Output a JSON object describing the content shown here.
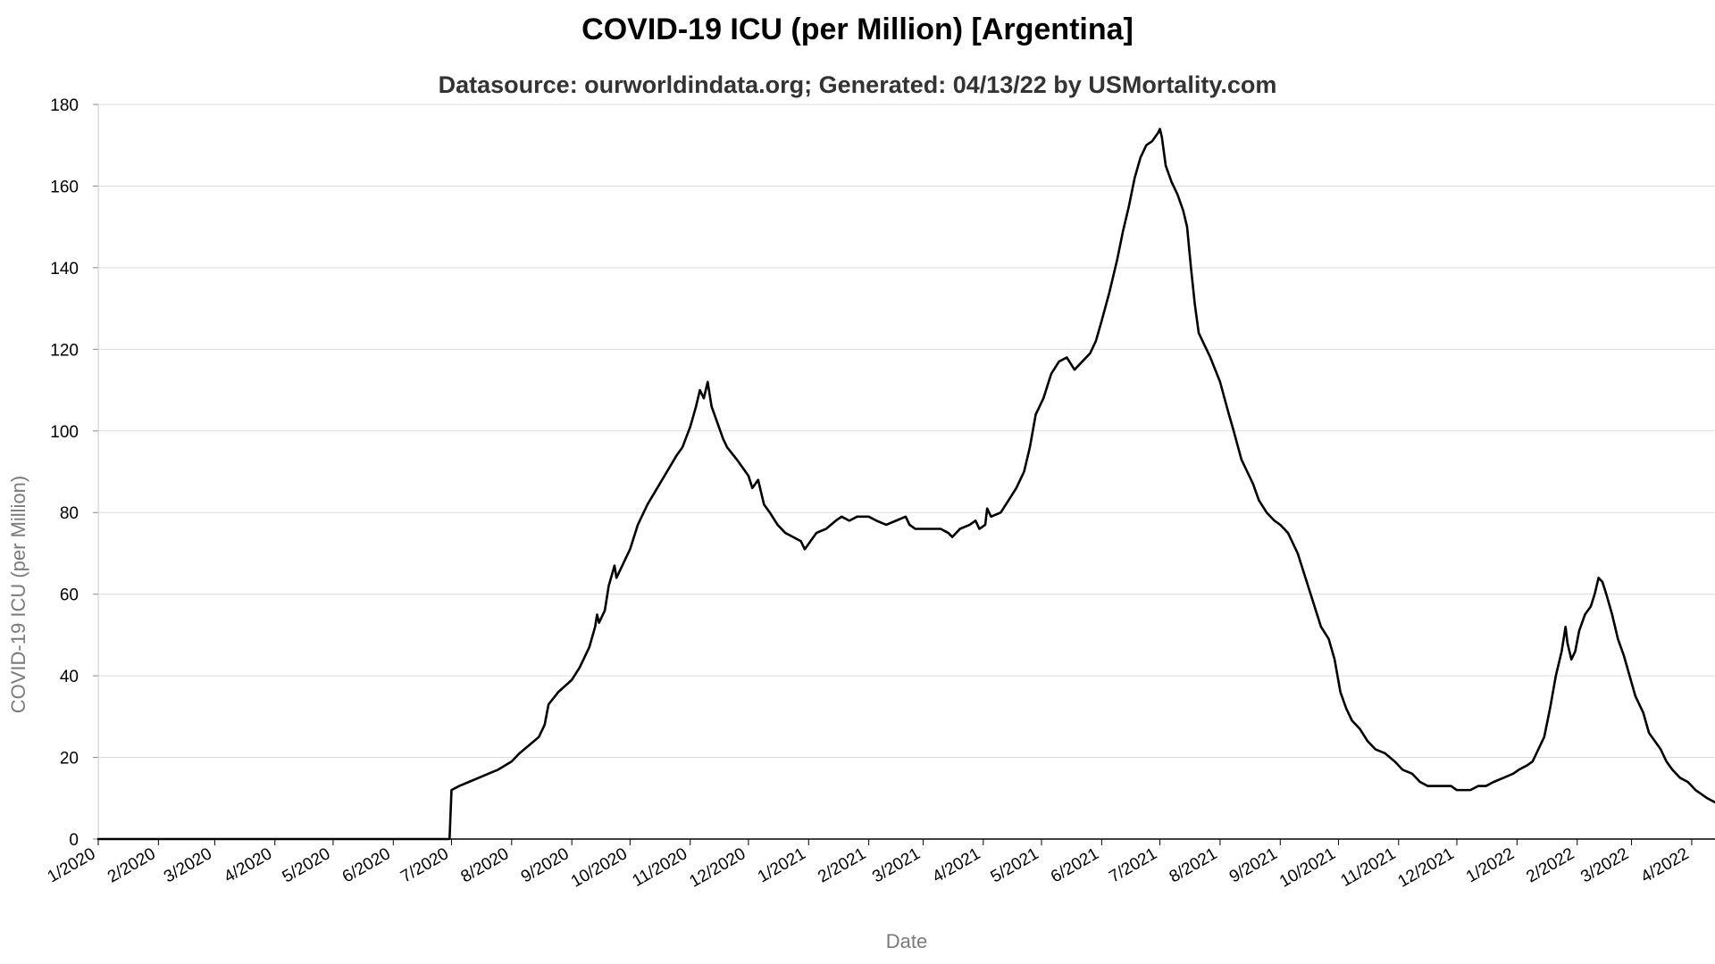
{
  "chart_data": {
    "type": "line",
    "title": "COVID-19 ICU (per Million) [Argentina]",
    "subtitle": "Datasource: ourworldindata.org; Generated: 04/13/22 by USMortality.com",
    "xlabel": "Date",
    "ylabel": "COVID-19 ICU (per Million)",
    "ylim": [
      0,
      180
    ],
    "yticks": [
      0,
      20,
      40,
      60,
      80,
      100,
      120,
      140,
      160,
      180
    ],
    "xlim": [
      "2020-01-01",
      "2022-04-13"
    ],
    "xticks": [
      {
        "date": "2020-01-01",
        "label": "1/2020"
      },
      {
        "date": "2020-02-01",
        "label": "2/2020"
      },
      {
        "date": "2020-03-01",
        "label": "3/2020"
      },
      {
        "date": "2020-04-01",
        "label": "4/2020"
      },
      {
        "date": "2020-05-01",
        "label": "5/2020"
      },
      {
        "date": "2020-06-01",
        "label": "6/2020"
      },
      {
        "date": "2020-07-01",
        "label": "7/2020"
      },
      {
        "date": "2020-08-01",
        "label": "8/2020"
      },
      {
        "date": "2020-09-01",
        "label": "9/2020"
      },
      {
        "date": "2020-10-01",
        "label": "10/2020"
      },
      {
        "date": "2020-11-01",
        "label": "11/2020"
      },
      {
        "date": "2020-12-01",
        "label": "12/2020"
      },
      {
        "date": "2021-01-01",
        "label": "1/2021"
      },
      {
        "date": "2021-02-01",
        "label": "2/2021"
      },
      {
        "date": "2021-03-01",
        "label": "3/2021"
      },
      {
        "date": "2021-04-01",
        "label": "4/2021"
      },
      {
        "date": "2021-05-01",
        "label": "5/2021"
      },
      {
        "date": "2021-06-01",
        "label": "6/2021"
      },
      {
        "date": "2021-07-01",
        "label": "7/2021"
      },
      {
        "date": "2021-08-01",
        "label": "8/2021"
      },
      {
        "date": "2021-09-01",
        "label": "9/2021"
      },
      {
        "date": "2021-10-01",
        "label": "10/2021"
      },
      {
        "date": "2021-11-01",
        "label": "11/2021"
      },
      {
        "date": "2021-12-01",
        "label": "12/2021"
      },
      {
        "date": "2022-01-01",
        "label": "1/2022"
      },
      {
        "date": "2022-02-01",
        "label": "2/2022"
      },
      {
        "date": "2022-03-01",
        "label": "3/2022"
      },
      {
        "date": "2022-04-01",
        "label": "4/2022"
      }
    ],
    "grid": true,
    "line_color": "#000000",
    "series": [
      {
        "points": [
          [
            "2020-01-01",
            0
          ],
          [
            "2020-06-30",
            0
          ],
          [
            "2020-07-01",
            12
          ],
          [
            "2020-07-05",
            13
          ],
          [
            "2020-07-10",
            14
          ],
          [
            "2020-07-15",
            15
          ],
          [
            "2020-07-20",
            16
          ],
          [
            "2020-07-25",
            17
          ],
          [
            "2020-08-01",
            19
          ],
          [
            "2020-08-05",
            21
          ],
          [
            "2020-08-10",
            23
          ],
          [
            "2020-08-15",
            25
          ],
          [
            "2020-08-18",
            28
          ],
          [
            "2020-08-20",
            33
          ],
          [
            "2020-08-25",
            36
          ],
          [
            "2020-09-01",
            39
          ],
          [
            "2020-09-05",
            42
          ],
          [
            "2020-09-10",
            47
          ],
          [
            "2020-09-13",
            52
          ],
          [
            "2020-09-14",
            55
          ],
          [
            "2020-09-15",
            53
          ],
          [
            "2020-09-18",
            56
          ],
          [
            "2020-09-20",
            62
          ],
          [
            "2020-09-23",
            67
          ],
          [
            "2020-09-24",
            64
          ],
          [
            "2020-09-26",
            66
          ],
          [
            "2020-10-01",
            71
          ],
          [
            "2020-10-05",
            77
          ],
          [
            "2020-10-10",
            82
          ],
          [
            "2020-10-15",
            86
          ],
          [
            "2020-10-20",
            90
          ],
          [
            "2020-10-25",
            94
          ],
          [
            "2020-10-28",
            96
          ],
          [
            "2020-11-01",
            101
          ],
          [
            "2020-11-04",
            106
          ],
          [
            "2020-11-06",
            110
          ],
          [
            "2020-11-08",
            108
          ],
          [
            "2020-11-10",
            112
          ],
          [
            "2020-11-12",
            106
          ],
          [
            "2020-11-15",
            102
          ],
          [
            "2020-11-18",
            98
          ],
          [
            "2020-11-20",
            96
          ],
          [
            "2020-11-25",
            93
          ],
          [
            "2020-11-28",
            91
          ],
          [
            "2020-12-01",
            89
          ],
          [
            "2020-12-03",
            86
          ],
          [
            "2020-12-06",
            88
          ],
          [
            "2020-12-09",
            82
          ],
          [
            "2020-12-12",
            80
          ],
          [
            "2020-12-16",
            77
          ],
          [
            "2020-12-20",
            75
          ],
          [
            "2020-12-24",
            74
          ],
          [
            "2020-12-28",
            73
          ],
          [
            "2020-12-30",
            71
          ],
          [
            "2021-01-02",
            73
          ],
          [
            "2021-01-05",
            75
          ],
          [
            "2021-01-10",
            76
          ],
          [
            "2021-01-15",
            78
          ],
          [
            "2021-01-18",
            79
          ],
          [
            "2021-01-22",
            78
          ],
          [
            "2021-01-26",
            79
          ],
          [
            "2021-02-01",
            79
          ],
          [
            "2021-02-05",
            78
          ],
          [
            "2021-02-10",
            77
          ],
          [
            "2021-02-15",
            78
          ],
          [
            "2021-02-20",
            79
          ],
          [
            "2021-02-22",
            77
          ],
          [
            "2021-02-25",
            76
          ],
          [
            "2021-03-01",
            76
          ],
          [
            "2021-03-05",
            76
          ],
          [
            "2021-03-10",
            76
          ],
          [
            "2021-03-14",
            75
          ],
          [
            "2021-03-16",
            74
          ],
          [
            "2021-03-20",
            76
          ],
          [
            "2021-03-25",
            77
          ],
          [
            "2021-03-28",
            78
          ],
          [
            "2021-03-30",
            76
          ],
          [
            "2021-04-02",
            77
          ],
          [
            "2021-04-03",
            81
          ],
          [
            "2021-04-05",
            79
          ],
          [
            "2021-04-10",
            80
          ],
          [
            "2021-04-14",
            83
          ],
          [
            "2021-04-18",
            86
          ],
          [
            "2021-04-22",
            90
          ],
          [
            "2021-04-25",
            96
          ],
          [
            "2021-04-28",
            104
          ],
          [
            "2021-05-02",
            108
          ],
          [
            "2021-05-06",
            114
          ],
          [
            "2021-05-10",
            117
          ],
          [
            "2021-05-14",
            118
          ],
          [
            "2021-05-18",
            115
          ],
          [
            "2021-05-22",
            117
          ],
          [
            "2021-05-26",
            119
          ],
          [
            "2021-05-29",
            122
          ],
          [
            "2021-06-01",
            127
          ],
          [
            "2021-06-05",
            134
          ],
          [
            "2021-06-09",
            142
          ],
          [
            "2021-06-12",
            149
          ],
          [
            "2021-06-15",
            155
          ],
          [
            "2021-06-18",
            162
          ],
          [
            "2021-06-21",
            167
          ],
          [
            "2021-06-24",
            170
          ],
          [
            "2021-06-27",
            171
          ],
          [
            "2021-06-30",
            173
          ],
          [
            "2021-07-01",
            174
          ],
          [
            "2021-07-02",
            172
          ],
          [
            "2021-07-04",
            165
          ],
          [
            "2021-07-07",
            161
          ],
          [
            "2021-07-10",
            158
          ],
          [
            "2021-07-13",
            154
          ],
          [
            "2021-07-15",
            150
          ],
          [
            "2021-07-17",
            140
          ],
          [
            "2021-07-19",
            131
          ],
          [
            "2021-07-21",
            124
          ],
          [
            "2021-07-24",
            121
          ],
          [
            "2021-07-27",
            118
          ],
          [
            "2021-08-01",
            112
          ],
          [
            "2021-08-05",
            105
          ],
          [
            "2021-08-08",
            100
          ],
          [
            "2021-08-12",
            93
          ],
          [
            "2021-08-15",
            90
          ],
          [
            "2021-08-18",
            87
          ],
          [
            "2021-08-21",
            83
          ],
          [
            "2021-08-25",
            80
          ],
          [
            "2021-08-29",
            78
          ],
          [
            "2021-09-01",
            77
          ],
          [
            "2021-09-05",
            75
          ],
          [
            "2021-09-10",
            70
          ],
          [
            "2021-09-14",
            64
          ],
          [
            "2021-09-18",
            58
          ],
          [
            "2021-09-22",
            52
          ],
          [
            "2021-09-26",
            49
          ],
          [
            "2021-09-29",
            44
          ],
          [
            "2021-10-02",
            36
          ],
          [
            "2021-10-05",
            32
          ],
          [
            "2021-10-08",
            29
          ],
          [
            "2021-10-12",
            27
          ],
          [
            "2021-10-16",
            24
          ],
          [
            "2021-10-20",
            22
          ],
          [
            "2021-10-25",
            21
          ],
          [
            "2021-10-30",
            19
          ],
          [
            "2021-11-03",
            17
          ],
          [
            "2021-11-08",
            16
          ],
          [
            "2021-11-12",
            14
          ],
          [
            "2021-11-16",
            13
          ],
          [
            "2021-11-22",
            13
          ],
          [
            "2021-11-28",
            13
          ],
          [
            "2021-12-01",
            12
          ],
          [
            "2021-12-08",
            12
          ],
          [
            "2021-12-12",
            13
          ],
          [
            "2021-12-16",
            13
          ],
          [
            "2021-12-20",
            14
          ],
          [
            "2021-12-25",
            15
          ],
          [
            "2021-12-30",
            16
          ],
          [
            "2022-01-02",
            17
          ],
          [
            "2022-01-06",
            18
          ],
          [
            "2022-01-09",
            19
          ],
          [
            "2022-01-12",
            22
          ],
          [
            "2022-01-15",
            25
          ],
          [
            "2022-01-18",
            32
          ],
          [
            "2022-01-21",
            40
          ],
          [
            "2022-01-24",
            46
          ],
          [
            "2022-01-26",
            52
          ],
          [
            "2022-01-27",
            48
          ],
          [
            "2022-01-29",
            44
          ],
          [
            "2022-01-31",
            46
          ],
          [
            "2022-02-02",
            51
          ],
          [
            "2022-02-05",
            55
          ],
          [
            "2022-02-08",
            57
          ],
          [
            "2022-02-10",
            60
          ],
          [
            "2022-02-12",
            64
          ],
          [
            "2022-02-14",
            63
          ],
          [
            "2022-02-16",
            60
          ],
          [
            "2022-02-19",
            55
          ],
          [
            "2022-02-22",
            49
          ],
          [
            "2022-02-25",
            45
          ],
          [
            "2022-02-28",
            40
          ],
          [
            "2022-03-03",
            35
          ],
          [
            "2022-03-07",
            31
          ],
          [
            "2022-03-10",
            26
          ],
          [
            "2022-03-13",
            24
          ],
          [
            "2022-03-16",
            22
          ],
          [
            "2022-03-19",
            19
          ],
          [
            "2022-03-22",
            17
          ],
          [
            "2022-03-26",
            15
          ],
          [
            "2022-03-30",
            14
          ],
          [
            "2022-04-03",
            12
          ],
          [
            "2022-04-06",
            11
          ],
          [
            "2022-04-09",
            10
          ],
          [
            "2022-04-13",
            9
          ]
        ]
      }
    ]
  }
}
